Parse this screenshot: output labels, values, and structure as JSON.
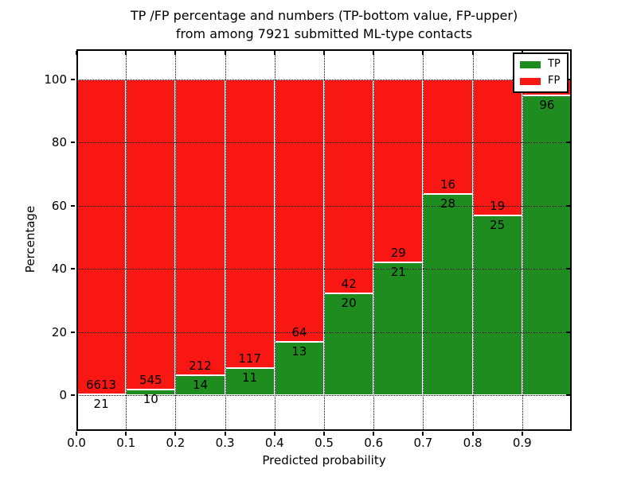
{
  "title": {
    "line1": "TP /FP percentage and numbers (TP-bottom value, FP-upper)",
    "line2": "from among 7921 submitted ML-type contacts"
  },
  "axes": {
    "xlabel": "Predicted probability",
    "ylabel": "Percentage",
    "x_ticks": [
      "0.0",
      "0.1",
      "0.2",
      "0.3",
      "0.4",
      "0.5",
      "0.6",
      "0.7",
      "0.8",
      "0.9"
    ],
    "y_ticks": [
      "0",
      "20",
      "40",
      "60",
      "80",
      "100"
    ]
  },
  "legend": {
    "items": [
      {
        "label": "TP",
        "color": "#1e8c1e"
      },
      {
        "label": "FP",
        "color": "#f81712"
      }
    ]
  },
  "colors": {
    "tp": "#1e8c1e",
    "fp": "#f81712",
    "text": "#000000",
    "background": "#ffffff",
    "bar_edge": "#ffffff",
    "grid": "#000000"
  },
  "chart_data": {
    "type": "bar",
    "subtype": "stacked-percentage-histogram",
    "title": "TP /FP percentage and numbers (TP-bottom value, FP-upper) from among 7921 submitted ML-type contacts",
    "total_submitted_contacts": 7921,
    "xlabel": "Predicted probability",
    "ylabel": "Percentage",
    "xlim": [
      0.0,
      1.0
    ],
    "ylim": [
      -11,
      110
    ],
    "grid": true,
    "legend_position": "upper right",
    "bin_edges": [
      0.0,
      0.1,
      0.2,
      0.3,
      0.4,
      0.5,
      0.6,
      0.7,
      0.8,
      0.9,
      1.0
    ],
    "series": [
      {
        "name": "TP",
        "color": "#1e8c1e",
        "counts": [
          21,
          10,
          14,
          11,
          13,
          20,
          21,
          28,
          25,
          96
        ],
        "percent": [
          0.32,
          1.8,
          6.19,
          8.59,
          16.88,
          32.26,
          42.0,
          63.64,
          56.82,
          95.05
        ]
      },
      {
        "name": "FP",
        "color": "#f81712",
        "counts": [
          6613,
          545,
          212,
          117,
          64,
          42,
          29,
          16,
          19,
          null
        ],
        "percent": [
          99.68,
          98.2,
          93.81,
          91.41,
          83.12,
          67.74,
          58.0,
          36.36,
          43.18,
          4.95
        ]
      }
    ],
    "bar_value_labels": {
      "tp": [
        "21",
        "10",
        "14",
        "11",
        "13",
        "20",
        "21",
        "28",
        "25",
        "96"
      ],
      "fp": [
        "6613",
        "545",
        "212",
        "117",
        "64",
        "42",
        "29",
        "16",
        "19",
        ""
      ]
    },
    "note_label_rule": "TP-bottom value, FP-upper"
  }
}
